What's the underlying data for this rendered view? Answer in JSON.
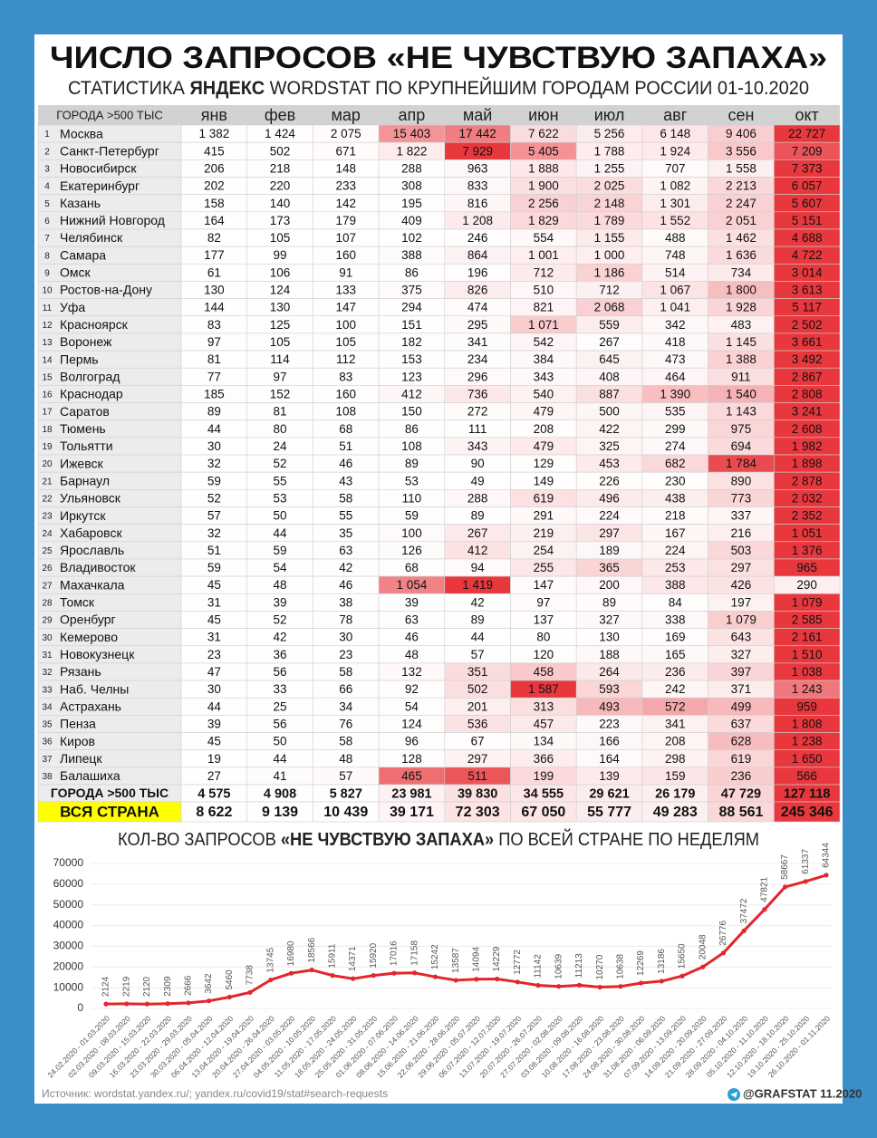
{
  "header": {
    "title": "ЧИСЛО ЗАПРОСОВ «НЕ ЧУВСТВУЮ ЗАПАХА»",
    "subtitle": [
      "СТАТИСТИКА ",
      "ЯНДЕКС",
      " WORDSTAT ПО КРУПНЕЙШИМ ГОРОДАМ РОССИИ 01-10.2020"
    ]
  },
  "table": {
    "columns": [
      "ГОРОДА >500 ТЫС",
      "янв",
      "фев",
      "мар",
      "апр",
      "май",
      "июн",
      "июл",
      "авг",
      "сен",
      "окт"
    ],
    "rows": [
      [
        1,
        "Москва",
        "1 382",
        "1 424",
        "2 075",
        "15 403",
        "17 442",
        "7 622",
        "5 256",
        "6 148",
        "9 406",
        "22 727"
      ],
      [
        2,
        "Санкт-Петербург",
        "415",
        "502",
        "671",
        "1 822",
        "7 929",
        "5 405",
        "1 788",
        "1 924",
        "3 556",
        "7 209"
      ],
      [
        3,
        "Новосибирск",
        "206",
        "218",
        "148",
        "288",
        "963",
        "1 888",
        "1 255",
        "707",
        "1 558",
        "7 373"
      ],
      [
        4,
        "Екатеринбург",
        "202",
        "220",
        "233",
        "308",
        "833",
        "1 900",
        "2 025",
        "1 082",
        "2 213",
        "6 057"
      ],
      [
        5,
        "Казань",
        "158",
        "140",
        "142",
        "195",
        "816",
        "2 256",
        "2 148",
        "1 301",
        "2 247",
        "5 607"
      ],
      [
        6,
        "Нижний Новгород",
        "164",
        "173",
        "179",
        "409",
        "1 208",
        "1 829",
        "1 789",
        "1 552",
        "2 051",
        "5 151"
      ],
      [
        7,
        "Челябинск",
        "82",
        "105",
        "107",
        "102",
        "246",
        "554",
        "1 155",
        "488",
        "1 462",
        "4 688"
      ],
      [
        8,
        "Самара",
        "177",
        "99",
        "160",
        "388",
        "864",
        "1 001",
        "1 000",
        "748",
        "1 636",
        "4 722"
      ],
      [
        9,
        "Омск",
        "61",
        "106",
        "91",
        "86",
        "196",
        "712",
        "1 186",
        "514",
        "734",
        "3 014"
      ],
      [
        10,
        "Ростов-на-Дону",
        "130",
        "124",
        "133",
        "375",
        "826",
        "510",
        "712",
        "1 067",
        "1 800",
        "3 613"
      ],
      [
        11,
        "Уфа",
        "144",
        "130",
        "147",
        "294",
        "474",
        "821",
        "2 068",
        "1 041",
        "1 928",
        "5 117"
      ],
      [
        12,
        "Красноярск",
        "83",
        "125",
        "100",
        "151",
        "295",
        "1 071",
        "559",
        "342",
        "483",
        "2 502"
      ],
      [
        13,
        "Воронеж",
        "97",
        "105",
        "105",
        "182",
        "341",
        "542",
        "267",
        "418",
        "1 145",
        "3 661"
      ],
      [
        14,
        "Пермь",
        "81",
        "114",
        "112",
        "153",
        "234",
        "384",
        "645",
        "473",
        "1 388",
        "3 492"
      ],
      [
        15,
        "Волгоград",
        "77",
        "97",
        "83",
        "123",
        "296",
        "343",
        "408",
        "464",
        "911",
        "2 867"
      ],
      [
        16,
        "Краснодар",
        "185",
        "152",
        "160",
        "412",
        "736",
        "540",
        "887",
        "1 390",
        "1 540",
        "2 808"
      ],
      [
        17,
        "Саратов",
        "89",
        "81",
        "108",
        "150",
        "272",
        "479",
        "500",
        "535",
        "1 143",
        "3 241"
      ],
      [
        18,
        "Тюмень",
        "44",
        "80",
        "68",
        "86",
        "111",
        "208",
        "422",
        "299",
        "975",
        "2 608"
      ],
      [
        19,
        "Тольятти",
        "30",
        "24",
        "51",
        "108",
        "343",
        "479",
        "325",
        "274",
        "694",
        "1 982"
      ],
      [
        20,
        "Ижевск",
        "32",
        "52",
        "46",
        "89",
        "90",
        "129",
        "453",
        "682",
        "1 784",
        "1 898"
      ],
      [
        21,
        "Барнаул",
        "59",
        "55",
        "43",
        "53",
        "49",
        "149",
        "226",
        "230",
        "890",
        "2 878"
      ],
      [
        22,
        "Ульяновск",
        "52",
        "53",
        "58",
        "110",
        "288",
        "619",
        "496",
        "438",
        "773",
        "2 032"
      ],
      [
        23,
        "Иркутск",
        "57",
        "50",
        "55",
        "59",
        "89",
        "291",
        "224",
        "218",
        "337",
        "2 352"
      ],
      [
        24,
        "Хабаровск",
        "32",
        "44",
        "35",
        "100",
        "267",
        "219",
        "297",
        "167",
        "216",
        "1 051"
      ],
      [
        25,
        "Ярославль",
        "51",
        "59",
        "63",
        "126",
        "412",
        "254",
        "189",
        "224",
        "503",
        "1 376"
      ],
      [
        26,
        "Владивосток",
        "59",
        "54",
        "42",
        "68",
        "94",
        "255",
        "365",
        "253",
        "297",
        "965"
      ],
      [
        27,
        "Махачкала",
        "45",
        "48",
        "46",
        "1 054",
        "1 419",
        "147",
        "200",
        "388",
        "426",
        "290"
      ],
      [
        28,
        "Томск",
        "31",
        "39",
        "38",
        "39",
        "42",
        "97",
        "89",
        "84",
        "197",
        "1 079"
      ],
      [
        29,
        "Оренбург",
        "45",
        "52",
        "78",
        "63",
        "89",
        "137",
        "327",
        "338",
        "1 079",
        "2 585"
      ],
      [
        30,
        "Кемерово",
        "31",
        "42",
        "30",
        "46",
        "44",
        "80",
        "130",
        "169",
        "643",
        "2 161"
      ],
      [
        31,
        "Новокузнецк",
        "23",
        "36",
        "23",
        "48",
        "57",
        "120",
        "188",
        "165",
        "327",
        "1 510"
      ],
      [
        32,
        "Рязань",
        "47",
        "56",
        "58",
        "132",
        "351",
        "458",
        "264",
        "236",
        "397",
        "1 038"
      ],
      [
        33,
        "Наб. Челны",
        "30",
        "33",
        "66",
        "92",
        "502",
        "1 587",
        "593",
        "242",
        "371",
        "1 243"
      ],
      [
        34,
        "Астрахань",
        "44",
        "25",
        "34",
        "54",
        "201",
        "313",
        "493",
        "572",
        "499",
        "959"
      ],
      [
        35,
        "Пенза",
        "39",
        "56",
        "76",
        "124",
        "536",
        "457",
        "223",
        "341",
        "637",
        "1 808"
      ],
      [
        36,
        "Киров",
        "45",
        "50",
        "58",
        "96",
        "67",
        "134",
        "166",
        "208",
        "628",
        "1 238"
      ],
      [
        37,
        "Липецк",
        "19",
        "44",
        "48",
        "128",
        "297",
        "366",
        "164",
        "298",
        "619",
        "1 650"
      ],
      [
        38,
        "Балашиха",
        "27",
        "41",
        "57",
        "465",
        "511",
        "199",
        "139",
        "159",
        "236",
        "566"
      ]
    ],
    "totals": [
      [
        "ГОРОДА >500 ТЫС",
        "4 575",
        "4 908",
        "5 827",
        "23 981",
        "39 830",
        "34 555",
        "29 621",
        "26 179",
        "47 729",
        "127 118"
      ],
      [
        "ВСЯ СТРАНА",
        "8 622",
        "9 139",
        "10 439",
        "39 171",
        "72 303",
        "67 050",
        "55 777",
        "49 283",
        "88 561",
        "245 346"
      ]
    ]
  },
  "chart_data": {
    "type": "line",
    "title": [
      "КОЛ-ВО ЗАПРОСОВ ",
      "«НЕ ЧУВСТВУЮ ЗАПАХА»",
      " ПО ВСЕЙ СТРАНЕ ПО НЕДЕЛЯМ"
    ],
    "categories": [
      "24.02.2020 - 01.03.2020",
      "02.03.2020 - 08.03.2020",
      "09.03.2020 - 15.03.2020",
      "16.03.2020 - 22.03.2020",
      "23.03.2020 - 29.03.2020",
      "30.03.2020 - 05.04.2020",
      "06.04.2020 - 12.04.2020",
      "13.04.2020 - 19.04.2020",
      "20.04.2020 - 26.04.2020",
      "27.04.2020 - 03.05.2020",
      "04.05.2020 - 10.05.2020",
      "11.05.2020 - 17.05.2020",
      "18.05.2020 - 24.05.2020",
      "25.05.2020 - 31.05.2020",
      "01.06.2020 - 07.06.2020",
      "08.06.2020 - 14.06.2020",
      "15.06.2020 - 21.06.2020",
      "22.06.2020 - 28.06.2020",
      "29.06.2020 - 05.07.2020",
      "06.07.2020 - 12.07.2020",
      "13.07.2020 - 19.07.2020",
      "20.07.2020 - 26.07.2020",
      "27.07.2020 - 02.08.2020",
      "03.08.2020 - 09.08.2020",
      "10.08.2020 - 16.08.2020",
      "17.08.2020 - 23.08.2020",
      "24.08.2020 - 30.08.2020",
      "31.08.2020 - 06.09.2020",
      "07.09.2020 - 13.09.2020",
      "14.09.2020 - 20.09.2020",
      "21.09.2020 - 27.09.2020",
      "28.09.2020 - 04.10.2020",
      "05.10.2020 - 11.10.2020",
      "12.10.2020 - 18.10.2020",
      "19.10.2020 - 25.10.2020",
      "26.10.2020 - 01.11.2020"
    ],
    "values": [
      2124,
      2219,
      2120,
      2309,
      2666,
      3642,
      5460,
      7738,
      13745,
      16980,
      18566,
      15911,
      14371,
      15920,
      17016,
      17158,
      15242,
      13587,
      14094,
      14229,
      12772,
      11142,
      10639,
      11213,
      10270,
      10638,
      12269,
      13186,
      15650,
      20048,
      26776,
      37472,
      47821,
      58667,
      61337,
      64344
    ],
    "color": "#e3262b",
    "ylim": [
      0,
      70000
    ],
    "yticks": [
      0,
      10000,
      20000,
      30000,
      40000,
      50000,
      60000,
      70000
    ],
    "grid": true
  },
  "footer": {
    "source": "Источник: wordstat.yandex.ru/; yandex.ru/covid19/stat#search-requests",
    "brand": "@GRAFSTAT 11.2020"
  }
}
